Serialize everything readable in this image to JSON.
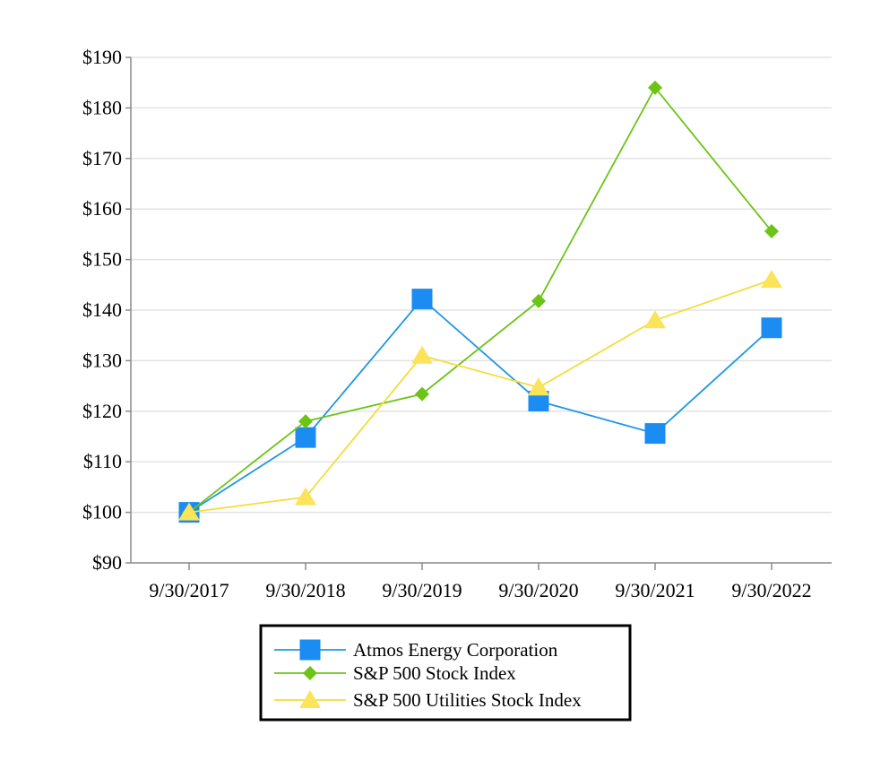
{
  "chart_data": {
    "type": "line",
    "title": "",
    "xlabel": "",
    "ylabel": "",
    "categories": [
      "9/30/2017",
      "9/30/2018",
      "9/30/2019",
      "9/30/2020",
      "9/30/2021",
      "9/30/2022"
    ],
    "ylim": [
      90,
      190
    ],
    "yticks": [
      90,
      100,
      110,
      120,
      130,
      140,
      150,
      160,
      170,
      180,
      190
    ],
    "ytick_labels": [
      "$90",
      "$100",
      "$110",
      "$120",
      "$130",
      "$140",
      "$150",
      "$160",
      "$170",
      "$180",
      "$190"
    ],
    "grid": true,
    "legend_position": "bottom",
    "series": [
      {
        "name": "Atmos Energy Corporation",
        "marker": "square",
        "color": "#1f97e6",
        "markerColor": "#1a8cf2",
        "values": [
          100.0,
          114.8,
          142.2,
          122.0,
          115.6,
          136.5
        ]
      },
      {
        "name": "S&P 500 Stock Index",
        "marker": "diamond",
        "color": "#6cc417",
        "markerColor": "#6cc417",
        "values": [
          100.0,
          118.0,
          123.4,
          141.8,
          184.0,
          155.6
        ]
      },
      {
        "name": "S&P 500 Utilities Stock Index",
        "marker": "triangle",
        "color": "#f5dc3c",
        "markerColor": "#fbe35a",
        "values": [
          100.0,
          103.0,
          131.0,
          124.7,
          138.0,
          146.0
        ]
      }
    ]
  }
}
